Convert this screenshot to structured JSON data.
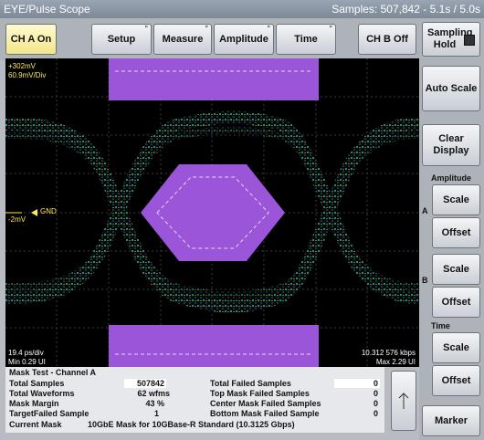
{
  "title": "EYE/Pulse Scope",
  "samples_status": "Samples: 507,842 - 5.1s / 5.0s",
  "toolbar": {
    "ch_a": "CH A On",
    "setup": "Setup",
    "measure": "Measure",
    "amplitude": "Amplitude",
    "time": "Time",
    "ch_b": "CH B Off",
    "sampling": "Sampling Hold"
  },
  "scope": {
    "top_volts": "+302mV",
    "volts_div": "60.9mV/Div",
    "gnd": "GND",
    "offset": "-2mV",
    "time_div": "19.4 ps/div",
    "min_ui": "Min 0.29 UI",
    "rate": "10.312 576 kbps",
    "max_ui": "Max 2.29 UI"
  },
  "panel": {
    "auto_scale": "Auto Scale",
    "clear_display": "Clear Display",
    "amplitude": "Amplitude",
    "a": "A",
    "b": "B",
    "scale": "Scale",
    "offset": "Offset",
    "time": "Time",
    "marker": "Marker"
  },
  "mask_table": {
    "title": "Mask Test - Channel A",
    "rows_left": [
      {
        "label": "Total Samples",
        "value": "507842"
      },
      {
        "label": "Total Waveforms",
        "value": "62 wfms"
      },
      {
        "label": "Mask Margin",
        "value": "43 %"
      },
      {
        "label": "TargetFailed Sample",
        "value": "1"
      }
    ],
    "current_mask_label": "Current Mask",
    "current_mask_value": "10GbE Mask for 10GBase-R Standard  (10.3125 Gbps)",
    "rows_right": [
      {
        "label": "Total Failed Samples",
        "value": "0"
      },
      {
        "label": "Top Mask Failed Samples",
        "value": "0"
      },
      {
        "label": "Center Mask Failed Samples",
        "value": "0"
      },
      {
        "label": "Bottom Mask Failed Sample",
        "value": "0"
      }
    ]
  },
  "colors": {
    "mask": "#9b55d8",
    "trace": "#3ec9a4",
    "titlebar": "#8793a1",
    "ch_a_on": "#f3e58a"
  }
}
